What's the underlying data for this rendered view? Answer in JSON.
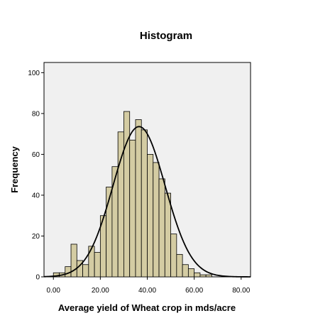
{
  "chart_data": {
    "type": "bar",
    "title": "Histogram",
    "xlabel": "Average yield of Wheat crop in mds/acre",
    "ylabel": "Frequency",
    "xlim": [
      -4,
      84
    ],
    "ylim": [
      0,
      105
    ],
    "xticks": [
      "0.00",
      "20.00",
      "40.00",
      "60.00",
      "80.00"
    ],
    "yticks": [
      "0",
      "20",
      "40",
      "60",
      "80",
      "100"
    ],
    "bin_width": 2.5,
    "bins_start": [
      -2.5,
      0,
      2.5,
      5,
      7.5,
      10,
      12.5,
      15,
      17.5,
      20,
      22.5,
      25,
      27.5,
      30,
      32.5,
      35,
      37.5,
      40,
      42.5,
      45,
      47.5,
      50,
      52.5,
      55,
      57.5,
      60,
      62.5,
      65,
      67.5,
      70,
      72.5,
      75,
      77.5,
      80
    ],
    "values": [
      0,
      2,
      2,
      5,
      16,
      8,
      6,
      15,
      12,
      30,
      44,
      54,
      71,
      81,
      67,
      77,
      72,
      60,
      56,
      48,
      41,
      21,
      11,
      6,
      4,
      2,
      1,
      1,
      0,
      0,
      0,
      0,
      0,
      0
    ],
    "normal_curve": {
      "mean": 36.5,
      "sd": 11.1,
      "peak": 73.6
    },
    "grid": false,
    "legend": "none",
    "colors": {
      "bar_fill": "#d4cca3",
      "bar_stroke": "#000000",
      "plot_bg": "#f0f0f0",
      "curve": "#000000"
    }
  }
}
